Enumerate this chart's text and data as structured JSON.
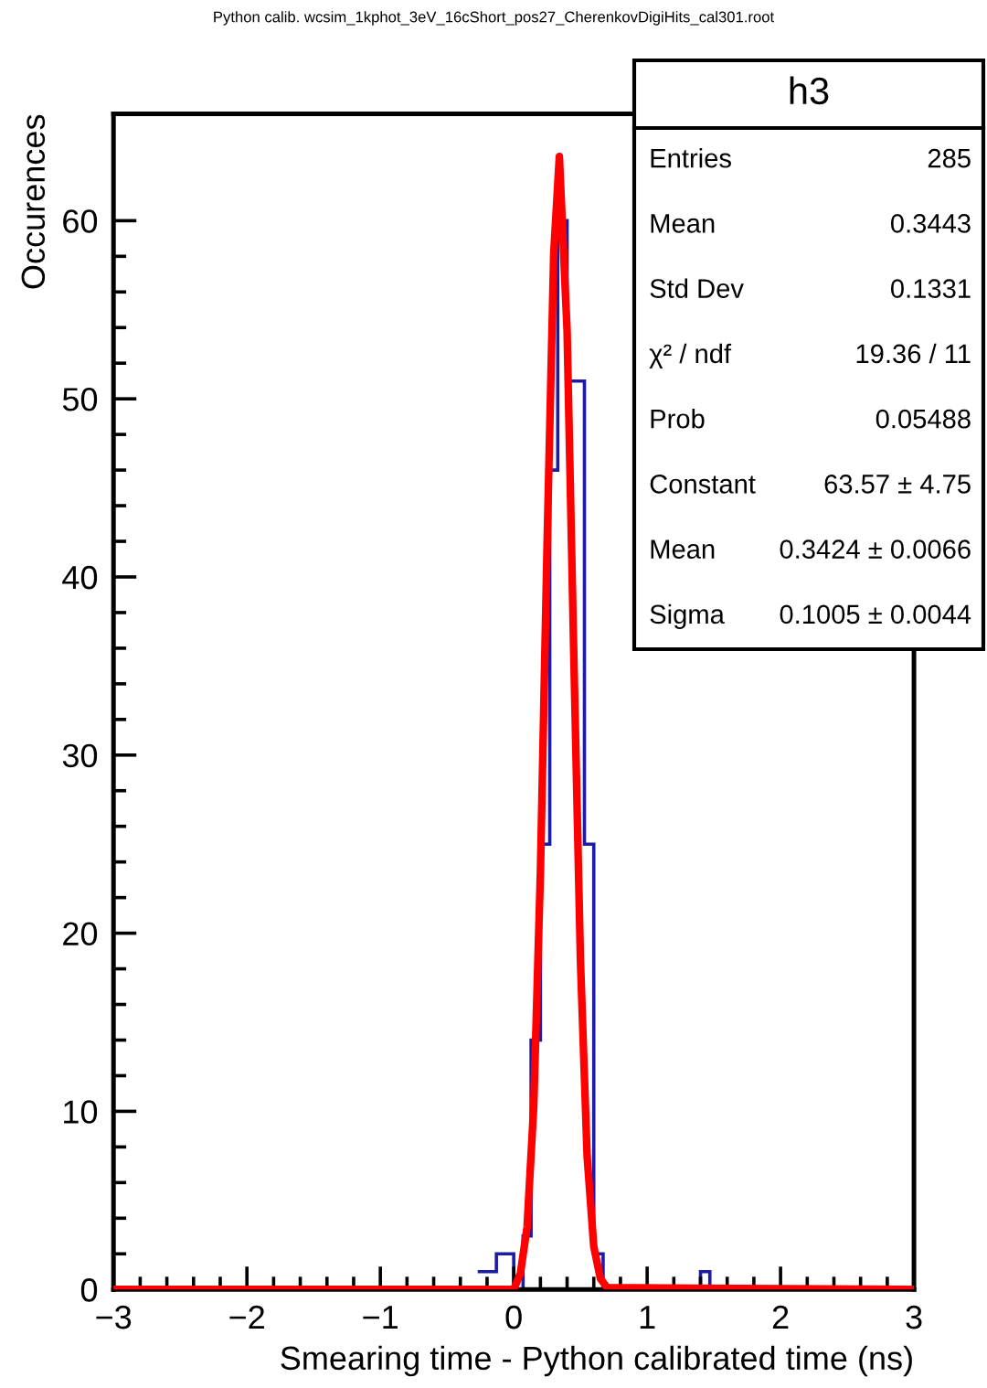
{
  "chart_data": [
    {
      "type": "histogram",
      "title": "Python calib. wcsim_1kphot_3eV_16cShort_pos27_CherenkovDigiHits_cal301.root",
      "xlabel": "Smearing time - Python calibrated time (ns)",
      "ylabel": "Occurences",
      "bins": [
        -0.27,
        -0.2,
        -0.13,
        -0.07,
        0,
        0.07,
        0.13,
        0.2,
        0.27,
        0.33,
        0.4,
        0.47,
        0.53,
        0.6,
        0.67,
        0.73,
        0.8,
        0.87,
        0.93,
        1,
        1.07,
        1.13,
        1.2,
        1.27,
        1.33,
        1.4,
        1.47,
        1.53
      ],
      "values": [
        1,
        1,
        2,
        2,
        0,
        3,
        14,
        25,
        46,
        60,
        51,
        51,
        25,
        2,
        0,
        0,
        0,
        0,
        0,
        0,
        0,
        0,
        0,
        0,
        0,
        1,
        0
      ],
      "color": "#1c1ca8",
      "series": [
        {
          "type": "line",
          "color": "#ff0000",
          "x": [
            -3,
            0,
            0.05,
            0.1,
            0.15,
            0.2,
            0.25,
            0.3,
            0.342,
            0.4,
            0.45,
            0.5,
            0.55,
            0.6,
            0.65,
            0.7,
            3
          ],
          "values": [
            0,
            0,
            0.9,
            3.5,
            10.3,
            23.4,
            41.8,
            58.2,
            63.6,
            53.8,
            35.7,
            18.5,
            7.5,
            2.4,
            0.6,
            0.1,
            0
          ]
        }
      ],
      "xlim": [
        -3,
        3
      ],
      "ylim": [
        0,
        66
      ],
      "xticks": [
        {
          "value": -3,
          "label": "−3"
        },
        {
          "value": -2,
          "label": "−2"
        },
        {
          "value": -1,
          "label": "−1"
        },
        0,
        1,
        2,
        3
      ],
      "yticks": [
        0,
        10,
        20,
        30,
        40,
        50,
        60
      ],
      "grid": false,
      "annotations": [
        "h3",
        "Entries",
        "285",
        "Mean",
        "0.3443",
        "Std Dev",
        "0.1331",
        "χ² / ndf",
        "19.36 / 11",
        "Prob",
        "0.05488",
        "Constant",
        "63.57 ± 4.75",
        "Mean",
        "0.3424 ± 0.0066",
        "Sigma",
        "0.1005 ± 0.0044"
      ]
    }
  ]
}
